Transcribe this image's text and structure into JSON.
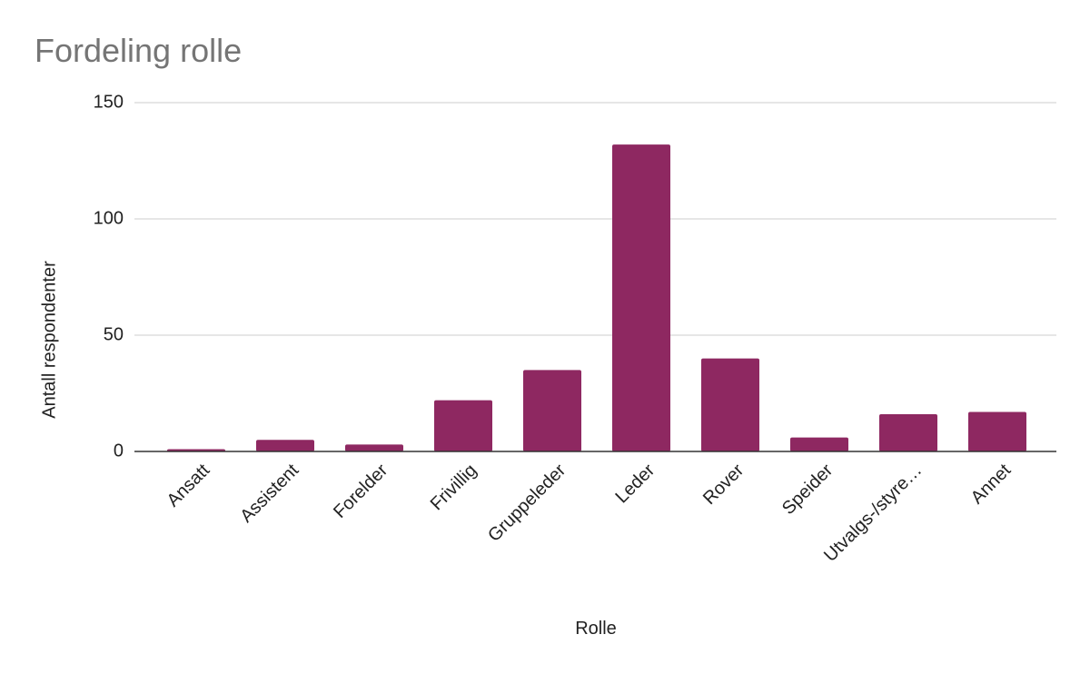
{
  "chart_data": {
    "type": "bar",
    "title": "Fordeling rolle",
    "x_label": "Rolle",
    "y_label": "Antall respondenter",
    "categories": [
      "Ansatt",
      "Assistent",
      "Forelder",
      "Frivillig",
      "Gruppeleder",
      "Leder",
      "Rover",
      "Speider",
      "Utvalgs-/styre…",
      "Annet"
    ],
    "values": [
      1,
      5,
      3,
      22,
      35,
      132,
      40,
      6,
      16,
      17
    ],
    "color": "#8e2861",
    "ylim": [
      0,
      150
    ],
    "yticks": [
      0,
      50,
      100,
      150
    ],
    "grid": true
  }
}
